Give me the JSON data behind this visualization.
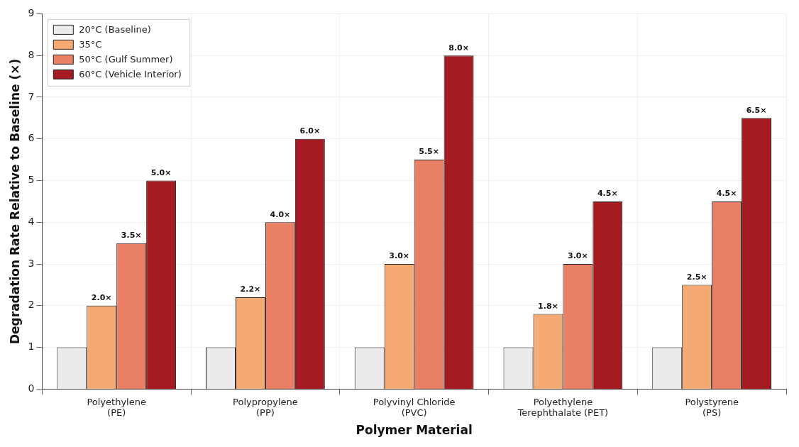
{
  "chart_data": {
    "type": "bar",
    "xlabel": "Polymer Material",
    "ylabel": "Degradation Rate Relative to Baseline (×)",
    "categories": [
      "Polyethylene\n(PE)",
      "Polypropylene\n(PP)",
      "Polyvinyl Chloride\n(PVC)",
      "Polyethylene\nTerephthalate (PET)",
      "Polystyrene\n(PS)"
    ],
    "series": [
      {
        "name": "20°C (Baseline)",
        "color": "#ebebeb",
        "values": [
          1,
          1,
          1,
          1,
          1
        ]
      },
      {
        "name": "35°C",
        "color": "#f4aa72",
        "values": [
          2.0,
          2.2,
          3.0,
          1.8,
          2.5
        ],
        "value_labels": [
          "2.0×",
          "2.2×",
          "3.0×",
          "1.8×",
          "2.5×"
        ]
      },
      {
        "name": "50°C (Gulf Summer)",
        "color": "#e97f64",
        "values": [
          3.5,
          4.0,
          5.5,
          3.0,
          4.5
        ],
        "value_labels": [
          "3.5×",
          "4.0×",
          "5.5×",
          "3.0×",
          "4.5×"
        ]
      },
      {
        "name": "60°C (Vehicle Interior)",
        "color": "#a51b22",
        "values": [
          5.0,
          6.0,
          8.0,
          4.5,
          6.5
        ],
        "value_labels": [
          "5.0×",
          "6.0×",
          "8.0×",
          "4.5×",
          "6.5×"
        ]
      }
    ],
    "ylim": [
      0,
      9
    ],
    "yticks": [
      0,
      1,
      2,
      3,
      4,
      5,
      6,
      7,
      8,
      9
    ],
    "grid": true,
    "legend": "top left"
  }
}
